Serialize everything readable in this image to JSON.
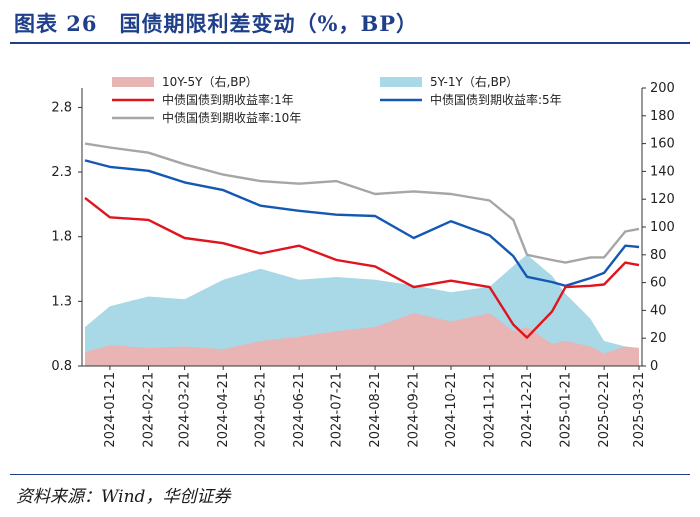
{
  "header": {
    "title": "图表 26　国债期限利差变动（%，BP）"
  },
  "footer": {
    "source": "资料来源：Wind，华创证券"
  },
  "colors": {
    "spread_10y5y": "#e8b4b4",
    "spread_5y1y": "#a9d8e6",
    "yield_1y": "#e0141e",
    "yield_5y": "#1458b4",
    "yield_10y": "#a6a6a6",
    "title": "#1f3f8a"
  },
  "chart_data": {
    "type": "line",
    "title": "图表 26　国债期限利差变动（%，BP）",
    "x_labels": [
      "2024-01-21",
      "2024-02-21",
      "2024-03-21",
      "2024-04-21",
      "2024-05-21",
      "2024-06-21",
      "2024-07-21",
      "2024-08-21",
      "2024-09-21",
      "2024-10-21",
      "2024-11-21",
      "2024-12-21",
      "2025-01-21",
      "2025-02-21",
      "2025-03-21"
    ],
    "left_axis": {
      "ticks": [
        "0.8",
        "1.3",
        "1.8",
        "2.3",
        "2.8"
      ],
      "min": 0.8,
      "max": 2.95
    },
    "right_axis": {
      "ticks": [
        "0",
        "20",
        "40",
        "60",
        "80",
        "100",
        "120",
        "140",
        "160",
        "180",
        "200"
      ],
      "min": 0,
      "max": 200
    },
    "legend": [
      {
        "label": "10Y-5Y（右,BP）",
        "kind": "area",
        "series": "spread_10y5y"
      },
      {
        "label": "5Y-1Y（右,BP）",
        "kind": "area",
        "series": "spread_5y1y"
      },
      {
        "label": "中债国债到期收益率:1年",
        "kind": "line",
        "series": "yield_1y"
      },
      {
        "label": "中债国债到期收益率:5年",
        "kind": "line",
        "series": "yield_5y"
      },
      {
        "label": "中债国债到期收益率:10年",
        "kind": "line",
        "series": "yield_10y"
      }
    ],
    "x_dates": [
      "2024-01-01",
      "2024-01-21",
      "2024-02-21",
      "2024-03-21",
      "2024-04-21",
      "2024-05-21",
      "2024-06-21",
      "2024-07-21",
      "2024-08-21",
      "2024-09-21",
      "2024-10-21",
      "2024-11-21",
      "2024-12-10",
      "2024-12-21",
      "2025-01-10",
      "2025-01-21",
      "2025-02-10",
      "2025-02-21",
      "2025-03-10",
      "2025-03-21"
    ],
    "series": [
      {
        "key": "spread_10y5y",
        "axis": "right",
        "values": [
          10,
          15,
          13,
          14,
          12,
          18,
          21,
          25,
          28,
          38,
          32,
          38,
          25,
          28,
          16,
          18,
          14,
          9,
          14,
          13
        ]
      },
      {
        "key": "spread_5y1y",
        "axis": "right",
        "values": [
          28,
          43,
          50,
          48,
          62,
          70,
          62,
          64,
          62,
          58,
          53,
          57,
          72,
          80,
          65,
          52,
          34,
          18,
          14,
          12
        ]
      },
      {
        "key": "yield_1y",
        "axis": "left",
        "values": [
          2.1,
          1.95,
          1.93,
          1.79,
          1.75,
          1.67,
          1.73,
          1.62,
          1.57,
          1.41,
          1.46,
          1.41,
          1.12,
          1.02,
          1.22,
          1.41,
          1.42,
          1.43,
          1.6,
          1.58
        ]
      },
      {
        "key": "yield_5y",
        "axis": "left",
        "values": [
          2.39,
          2.34,
          2.31,
          2.22,
          2.16,
          2.04,
          2.0,
          1.97,
          1.96,
          1.79,
          1.92,
          1.81,
          1.65,
          1.49,
          1.45,
          1.42,
          1.48,
          1.52,
          1.73,
          1.72
        ]
      },
      {
        "key": "yield_10y",
        "axis": "left",
        "values": [
          2.52,
          2.49,
          2.45,
          2.36,
          2.28,
          2.23,
          2.21,
          2.23,
          2.13,
          2.15,
          2.13,
          2.08,
          1.93,
          1.66,
          1.62,
          1.6,
          1.64,
          1.64,
          1.84,
          1.86
        ]
      }
    ]
  }
}
